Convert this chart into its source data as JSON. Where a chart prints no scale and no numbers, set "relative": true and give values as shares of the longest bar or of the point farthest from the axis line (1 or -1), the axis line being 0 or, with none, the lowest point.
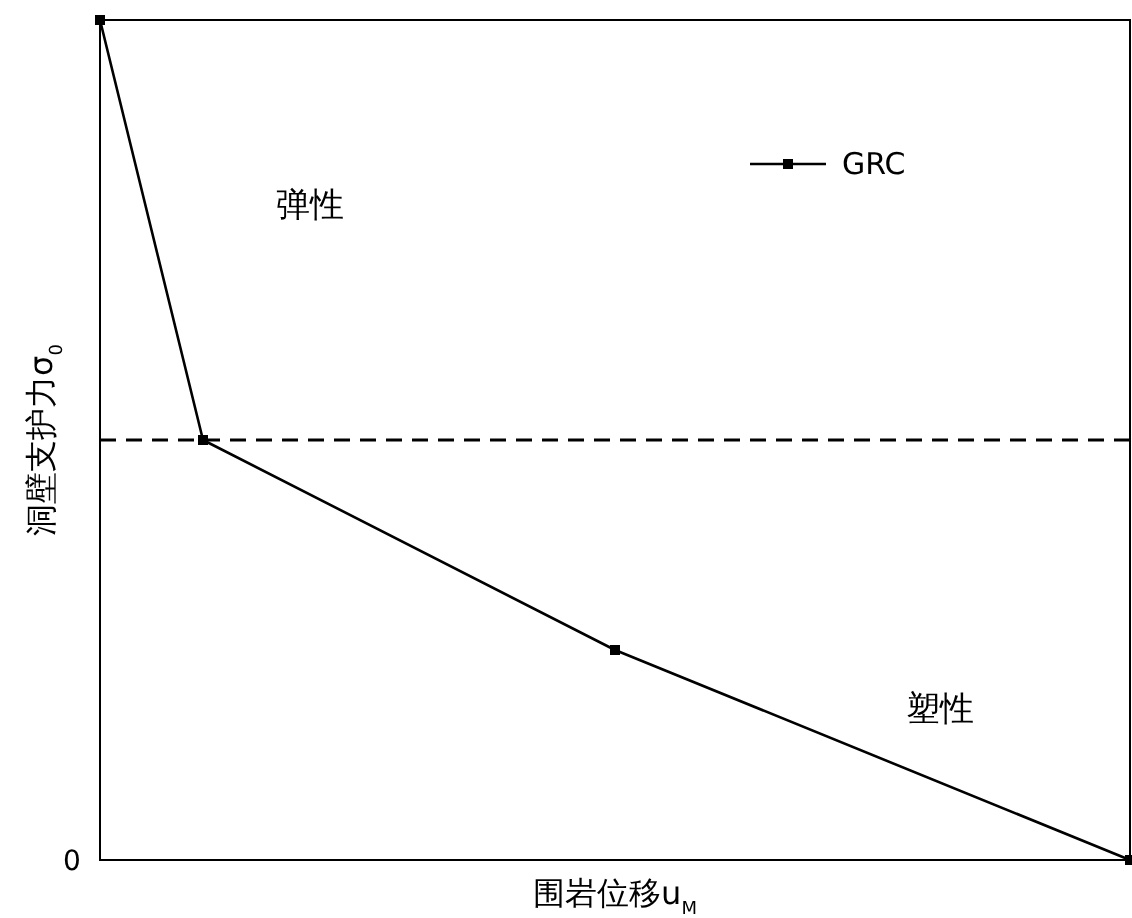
{
  "chart_data": {
    "type": "line",
    "relative": true,
    "xlabel": "围岩位移u$_{M}$",
    "ylabel": "洞壁支护力σ$_{0}$",
    "categories": [
      null,
      null,
      null,
      null,
      null,
      null,
      null,
      null,
      null,
      null,
      null
    ],
    "series": [
      {
        "name": "GRC",
        "color": "#000000",
        "values": [
          1,
          0.5,
          null,
          null,
          null,
          0.25,
          null,
          null,
          null,
          null,
          0
        ]
      }
    ],
    "ref_lines": [
      {
        "axis": "y",
        "value": 0.5,
        "line_style": "dashed",
        "color": "#000000"
      }
    ],
    "annotations": [
      "弹性",
      "塑性",
      "0"
    ],
    "marker": "square",
    "line_style": "solid",
    "legend": "top right"
  }
}
